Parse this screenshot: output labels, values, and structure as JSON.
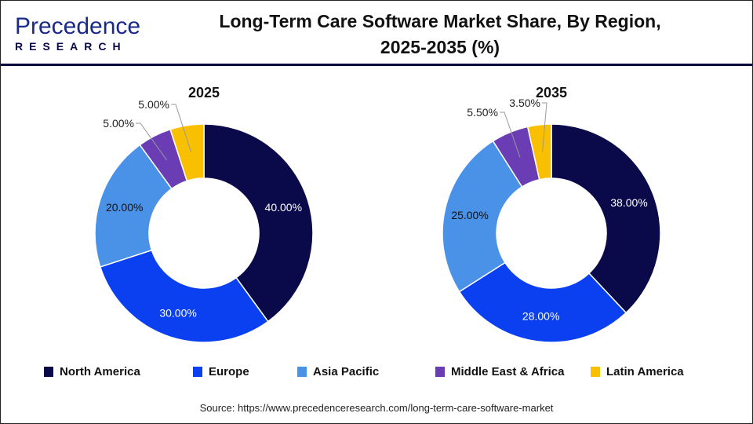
{
  "header": {
    "logo_line1": "Precedence",
    "logo_line2": "RESEARCH",
    "title": "Long-Term Care Software Market Share, By Region, 2025-2035 (%)"
  },
  "chart_data": [
    {
      "type": "pie",
      "title": "2025",
      "categories": [
        "North America",
        "Europe",
        "Asia Pacific",
        "Middle East & Africa",
        "Latin America"
      ],
      "values": [
        40,
        30,
        20,
        5,
        5
      ],
      "labels": [
        "40.00%",
        "30.00%",
        "20.00%",
        "5.00%",
        "5.00%"
      ]
    },
    {
      "type": "pie",
      "title": "2035",
      "categories": [
        "North America",
        "Europe",
        "Asia Pacific",
        "Middle East & Africa",
        "Latin America"
      ],
      "values": [
        38,
        28,
        25,
        5.5,
        3.5
      ],
      "labels": [
        "38.00%",
        "28.00%",
        "25.00%",
        "5.50%",
        "3.50%"
      ]
    }
  ],
  "legend": [
    {
      "label": "North America",
      "color": "#0a0a4a"
    },
    {
      "label": "Europe",
      "color": "#0b40f0"
    },
    {
      "label": "Asia Pacific",
      "color": "#4a92e8"
    },
    {
      "label": "Middle East & Africa",
      "color": "#6a3db4"
    },
    {
      "label": "Latin America",
      "color": "#f8c000"
    }
  ],
  "source": "Source: https://www.precedenceresearch.com/long-term-care-software-market"
}
